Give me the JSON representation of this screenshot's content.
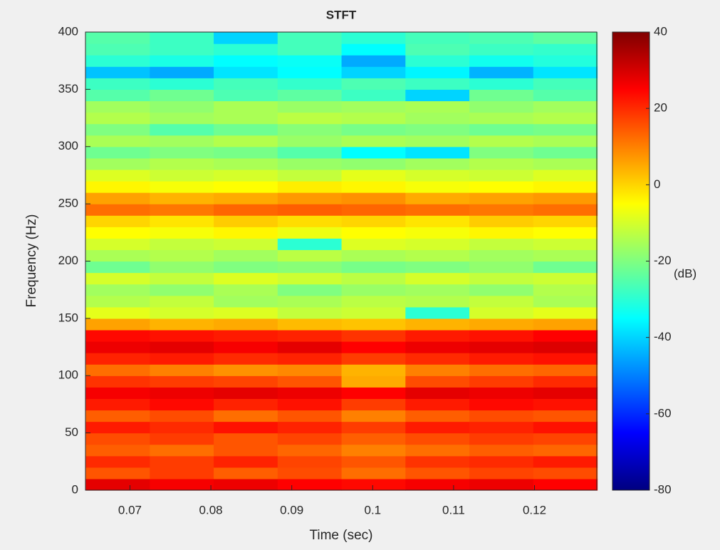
{
  "chart_data": {
    "type": "heatmap",
    "title": "STFT",
    "x_label": "Time (sec)",
    "y_label": "Frequency (Hz)",
    "colorbar_label": "(dB)",
    "colormap": "jet",
    "x": [
      0.0685,
      0.0764,
      0.0843,
      0.0922,
      0.1001,
      0.108,
      0.1159,
      0.1238
    ],
    "y": [
      5,
      15,
      25,
      35,
      45,
      55,
      65,
      75,
      85,
      95,
      105,
      115,
      125,
      135,
      145,
      155,
      165,
      175,
      185,
      195,
      205,
      215,
      225,
      235,
      245,
      255,
      265,
      275,
      285,
      295,
      305,
      315,
      325,
      335,
      345,
      355,
      365,
      375,
      385,
      395
    ],
    "values": [
      [
        28,
        26,
        27,
        25,
        24,
        26,
        27,
        25
      ],
      [
        15,
        18,
        14,
        16,
        12,
        15,
        17,
        16
      ],
      [
        20,
        18,
        21,
        17,
        15,
        19,
        20,
        22
      ],
      [
        14,
        12,
        15,
        13,
        10,
        12,
        14,
        13
      ],
      [
        16,
        18,
        15,
        17,
        14,
        16,
        18,
        17
      ],
      [
        22,
        20,
        23,
        21,
        18,
        22,
        21,
        23
      ],
      [
        14,
        16,
        12,
        15,
        10,
        14,
        16,
        15
      ],
      [
        22,
        24,
        21,
        23,
        18,
        22,
        24,
        23
      ],
      [
        26,
        27,
        28,
        27,
        25,
        28,
        27,
        28
      ],
      [
        19,
        18,
        17,
        15,
        5,
        16,
        18,
        20
      ],
      [
        12,
        10,
        8,
        9,
        4,
        10,
        12,
        13
      ],
      [
        21,
        22,
        20,
        21,
        18,
        20,
        22,
        23
      ],
      [
        27,
        28,
        26,
        28,
        25,
        27,
        28,
        29
      ],
      [
        24,
        23,
        22,
        21,
        19,
        22,
        23,
        25
      ],
      [
        6,
        4,
        5,
        3,
        2,
        4,
        5,
        6
      ],
      [
        -8,
        -10,
        -9,
        -12,
        -11,
        -30,
        -10,
        -8
      ],
      [
        -14,
        -12,
        -16,
        -15,
        -13,
        -14,
        -12,
        -15
      ],
      [
        -16,
        -18,
        -15,
        -20,
        -17,
        -16,
        -18,
        -14
      ],
      [
        -10,
        -12,
        -9,
        -11,
        -13,
        -10,
        -12,
        -11
      ],
      [
        -22,
        -18,
        -20,
        -19,
        -21,
        -20,
        -18,
        -22
      ],
      [
        -15,
        -14,
        -16,
        -13,
        -15,
        -14,
        -16,
        -15
      ],
      [
        -10,
        -12,
        -11,
        -30,
        -9,
        -10,
        -12,
        -11
      ],
      [
        -5,
        -6,
        -4,
        -7,
        -5,
        -6,
        -4,
        -5
      ],
      [
        0,
        -2,
        1,
        -1,
        0,
        -2,
        1,
        0
      ],
      [
        12,
        11,
        13,
        14,
        13,
        12,
        11,
        12
      ],
      [
        6,
        4,
        5,
        7,
        8,
        5,
        6,
        7
      ],
      [
        -4,
        -6,
        -5,
        -3,
        -4,
        -6,
        -5,
        -4
      ],
      [
        -9,
        -11,
        -10,
        -12,
        -8,
        -10,
        -11,
        -9
      ],
      [
        -16,
        -14,
        -15,
        -17,
        -18,
        -16,
        -14,
        -15
      ],
      [
        -22,
        -20,
        -21,
        -25,
        -35,
        -38,
        -20,
        -22
      ],
      [
        -15,
        -16,
        -14,
        -17,
        -15,
        -16,
        -14,
        -15
      ],
      [
        -20,
        -25,
        -22,
        -19,
        -21,
        -20,
        -22,
        -21
      ],
      [
        -14,
        -16,
        -15,
        -13,
        -14,
        -16,
        -15,
        -14
      ],
      [
        -16,
        -18,
        -15,
        -17,
        -16,
        -15,
        -18,
        -16
      ],
      [
        -25,
        -22,
        -26,
        -24,
        -28,
        -40,
        -22,
        -25
      ],
      [
        -28,
        -30,
        -27,
        -29,
        -26,
        -28,
        -30,
        -27
      ],
      [
        -42,
        -45,
        -38,
        -35,
        -40,
        -36,
        -44,
        -38
      ],
      [
        -30,
        -32,
        -35,
        -34,
        -45,
        -30,
        -33,
        -31
      ],
      [
        -26,
        -28,
        -30,
        -27,
        -35,
        -26,
        -28,
        -29
      ],
      [
        -25,
        -28,
        -40,
        -27,
        -30,
        -27,
        -26,
        -24
      ]
    ],
    "xlim": [
      0.0645,
      0.1277
    ],
    "xticks": [
      0.07,
      0.08,
      0.09,
      0.1,
      0.11,
      0.12
    ],
    "ylim": [
      0,
      400
    ],
    "yticks": [
      0,
      50,
      100,
      150,
      200,
      250,
      300,
      350,
      400
    ],
    "clim": [
      -80,
      40
    ],
    "cticks": [
      -80,
      -60,
      -40,
      -20,
      0,
      20,
      40
    ]
  }
}
